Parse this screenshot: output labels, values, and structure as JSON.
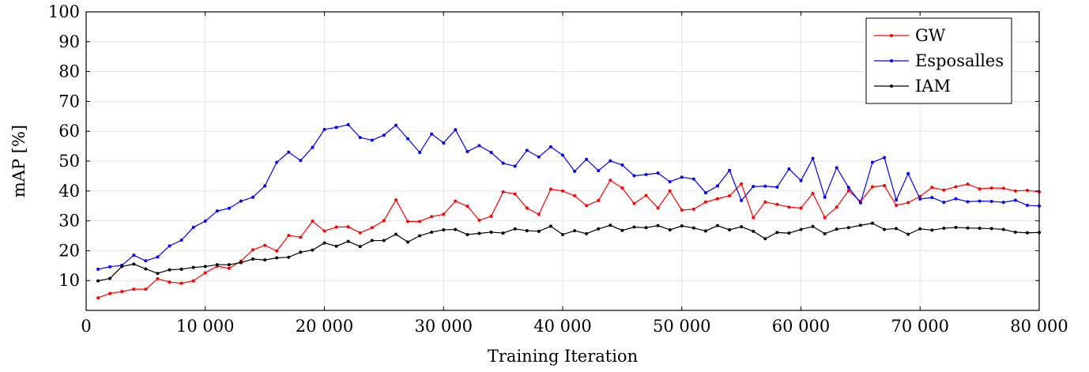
{
  "chart_data": {
    "type": "line",
    "xlabel": "Training Iteration",
    "ylabel": "mAP [%]",
    "xlim": [
      0,
      80000
    ],
    "ylim": [
      0,
      100
    ],
    "xticks": [
      0,
      10000,
      20000,
      30000,
      40000,
      50000,
      60000,
      70000,
      80000
    ],
    "xtick_labels": [
      "0",
      "10 000",
      "20 000",
      "30 000",
      "40 000",
      "50 000",
      "60 000",
      "70 000",
      "80 000"
    ],
    "yticks": [
      10,
      20,
      30,
      40,
      50,
      60,
      70,
      80,
      90,
      100
    ],
    "ytick_labels": [
      "10",
      "20",
      "30",
      "40",
      "50",
      "60",
      "70",
      "80",
      "90",
      "100"
    ],
    "grid": true,
    "legend_position": "top-right",
    "x": [
      1000,
      2000,
      3000,
      4000,
      5000,
      6000,
      7000,
      8000,
      9000,
      10000,
      11000,
      12000,
      13000,
      14000,
      15000,
      16000,
      17000,
      18000,
      19000,
      20000,
      21000,
      22000,
      23000,
      24000,
      25000,
      26000,
      27000,
      28000,
      29000,
      30000,
      31000,
      32000,
      33000,
      34000,
      35000,
      36000,
      37000,
      38000,
      39000,
      40000,
      41000,
      42000,
      43000,
      44000,
      45000,
      46000,
      47000,
      48000,
      49000,
      50000,
      51000,
      52000,
      53000,
      54000,
      55000,
      56000,
      57000,
      58000,
      59000,
      60000,
      61000,
      62000,
      63000,
      64000,
      65000,
      66000,
      67000,
      68000,
      69000,
      70000,
      71000,
      72000,
      73000,
      74000,
      75000,
      76000,
      77000,
      78000,
      79000,
      80000
    ],
    "series": [
      {
        "name": "GW",
        "color": "#ff0000",
        "values": [
          4.2,
          5.7,
          6.3,
          7.1,
          7.1,
          10.6,
          9.5,
          9.1,
          9.9,
          12.6,
          14.8,
          14.1,
          16.5,
          20.3,
          21.8,
          19.9,
          25.1,
          24.5,
          29.9,
          26.6,
          27.9,
          28.0,
          26.0,
          27.7,
          30.1,
          37.0,
          29.8,
          29.8,
          31.4,
          32.2,
          36.6,
          34.9,
          30.2,
          31.5,
          39.7,
          39.0,
          34.3,
          32.2,
          40.6,
          40.0,
          38.4,
          35.1,
          36.8,
          43.6,
          41.0,
          35.8,
          38.5,
          34.3,
          40.0,
          33.6,
          33.9,
          36.3,
          37.4,
          38.4,
          42.4,
          31.1,
          36.3,
          35.5,
          34.6,
          34.3,
          39.2,
          31.1,
          34.6,
          40.1,
          36.5,
          41.4,
          41.8,
          35.2,
          36.1,
          38.2,
          41.2,
          40.3,
          41.4,
          42.3,
          40.7,
          41.0,
          40.9,
          40.0,
          40.2,
          39.7
        ]
      },
      {
        "name": "Esposalles",
        "color": "#0000ff",
        "values": [
          13.8,
          14.6,
          15.1,
          18.5,
          16.6,
          17.9,
          21.6,
          23.5,
          27.8,
          29.9,
          33.3,
          34.2,
          36.6,
          37.9,
          41.7,
          49.6,
          53.0,
          50.2,
          54.6,
          60.6,
          61.3,
          62.2,
          57.9,
          57.0,
          58.7,
          62.0,
          57.5,
          52.9,
          59.1,
          56.1,
          60.5,
          53.2,
          55.2,
          52.9,
          49.3,
          48.3,
          53.6,
          51.4,
          54.8,
          52.0,
          46.6,
          50.6,
          46.8,
          50.1,
          48.7,
          45.1,
          45.5,
          46.0,
          43.1,
          44.6,
          44.0,
          39.4,
          41.7,
          46.9,
          36.8,
          41.5,
          41.6,
          41.3,
          47.4,
          43.5,
          50.9,
          37.9,
          47.8,
          41.2,
          36.0,
          49.6,
          51.2,
          37.0,
          45.8,
          37.3,
          37.8,
          36.2,
          37.4,
          36.4,
          36.6,
          36.5,
          36.2,
          36.9,
          35.2,
          35.0
        ]
      },
      {
        "name": "IAM",
        "color": "#000000",
        "values": [
          9.9,
          10.7,
          14.7,
          15.5,
          13.9,
          12.4,
          13.6,
          13.8,
          14.4,
          14.7,
          15.3,
          15.3,
          16.0,
          17.2,
          16.9,
          17.6,
          17.8,
          19.5,
          20.2,
          22.6,
          21.5,
          23.1,
          21.4,
          23.4,
          23.4,
          25.5,
          22.9,
          25.0,
          26.2,
          27.0,
          27.1,
          25.4,
          25.8,
          26.2,
          25.9,
          27.3,
          26.7,
          26.5,
          28.2,
          25.4,
          26.7,
          25.7,
          27.3,
          28.5,
          26.8,
          27.9,
          27.7,
          28.4,
          27.0,
          28.3,
          27.6,
          26.6,
          28.4,
          27.0,
          28.0,
          26.5,
          24.0,
          26.1,
          25.9,
          27.1,
          28.1,
          25.7,
          27.2,
          27.7,
          28.5,
          29.2,
          27.1,
          27.4,
          25.5,
          27.3,
          26.9,
          27.5,
          27.8,
          27.6,
          27.5,
          27.4,
          27.1,
          26.2,
          26.0,
          26.1
        ]
      }
    ]
  }
}
